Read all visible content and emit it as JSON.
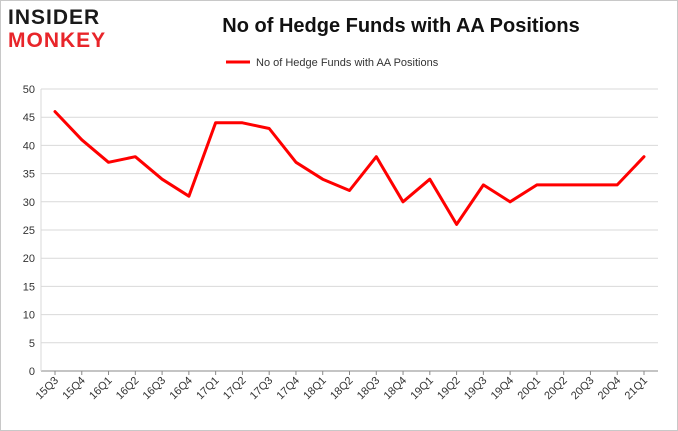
{
  "logo": {
    "line1": "INSIDER",
    "line2": "MONKEY"
  },
  "colors": {
    "series": "#ff0000",
    "grid": "#d9d9d9",
    "axis": "#888888",
    "logo_dark": "#1a1a1a",
    "logo_red": "#e8252a"
  },
  "chart_data": {
    "type": "line",
    "title": "No of Hedge Funds with AA Positions",
    "xlabel": "",
    "ylabel": "",
    "ylim": [
      0,
      50
    ],
    "yticks": [
      0,
      5,
      10,
      15,
      20,
      25,
      30,
      35,
      40,
      45,
      50
    ],
    "grid": true,
    "legend_position": "top-center",
    "categories": [
      "15Q3",
      "15Q4",
      "16Q1",
      "16Q2",
      "16Q3",
      "16Q4",
      "17Q1",
      "17Q2",
      "17Q3",
      "17Q4",
      "18Q1",
      "18Q2",
      "18Q3",
      "18Q4",
      "19Q1",
      "19Q2",
      "19Q3",
      "19Q4",
      "20Q1",
      "20Q2",
      "20Q3",
      "20Q4",
      "21Q1"
    ],
    "series": [
      {
        "name": "No of Hedge Funds with AA Positions",
        "color": "#ff0000",
        "values": [
          46,
          41,
          37,
          38,
          34,
          31,
          44,
          44,
          43,
          37,
          34,
          32,
          38,
          30,
          34,
          26,
          33,
          30,
          33,
          33,
          33,
          33,
          38
        ]
      }
    ]
  }
}
